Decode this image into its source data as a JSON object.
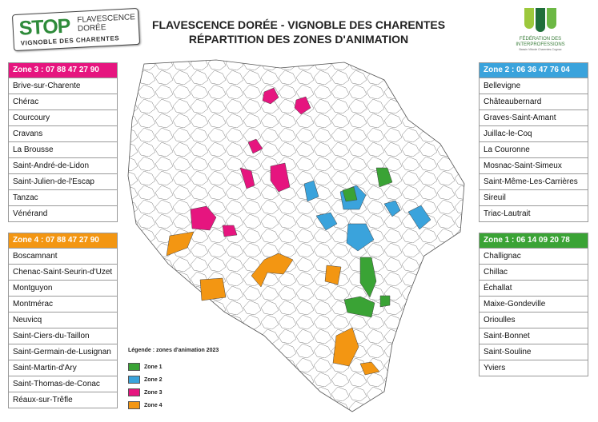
{
  "logo": {
    "stop": "STOP",
    "line1": "FLAVESCENCE",
    "line2": "DORÉE",
    "line3": "VIGNOBLE DES CHARENTES"
  },
  "title": {
    "line1": "FLAVESCENCE DORÉE - VIGNOBLE DES CHARENTES",
    "line2": "RÉPARTITION DES ZONES D'ANIMATION"
  },
  "federation": {
    "line1": "FÉDÉRATION DES",
    "line2": "INTERPROFESSIONS",
    "line3": "Bassin Viticole Charentes-Cognac"
  },
  "colors": {
    "zone1": "#3aa335",
    "zone2": "#3aa3dc",
    "zone3": "#e6157f",
    "zone4": "#f39612"
  },
  "zones": {
    "zone3": {
      "header": "Zone 3 : 07 88 47 27 90",
      "items": [
        "Brive-sur-Charente",
        "Chérac",
        "Courcoury",
        "Cravans",
        "La Brousse",
        "Saint-André-de-Lidon",
        "Saint-Julien-de-l'Escap",
        "Tanzac",
        "Vénérand"
      ]
    },
    "zone4": {
      "header": "Zone 4 : 07 88 47 27 90",
      "items": [
        "Boscamnant",
        "Chenac-Saint-Seurin-d'Uzet",
        "Montguyon",
        "Montmérac",
        "Neuvicq",
        "Saint-Ciers-du-Taillon",
        "Saint-Germain-de-Lusignan",
        "Saint-Martin-d'Ary",
        "Saint-Thomas-de-Conac",
        "Réaux-sur-Trêfle"
      ]
    },
    "zone2": {
      "header": "Zone 2 : 06 36 47 76 04",
      "items": [
        "Bellevigne",
        "Châteaubernard",
        "Graves-Saint-Amant",
        "Juillac-le-Coq",
        "La Couronne",
        "Mosnac-Saint-Simeux",
        "Saint-Même-Les-Carrières",
        "Sireuil",
        "Triac-Lautrait"
      ]
    },
    "zone1": {
      "header": "Zone 1 : 06 14 09 20 78",
      "items": [
        "Challignac",
        "Chillac",
        "Échallat",
        "Maixe-Gondeville",
        "Orioulles",
        "Saint-Bonnet",
        "Saint-Souline",
        "Yviers"
      ]
    }
  },
  "legend": {
    "title": "Légende : zones d'animation 2023",
    "items": [
      "Zone 1",
      "Zone 2",
      "Zone 3",
      "Zone 4"
    ]
  }
}
